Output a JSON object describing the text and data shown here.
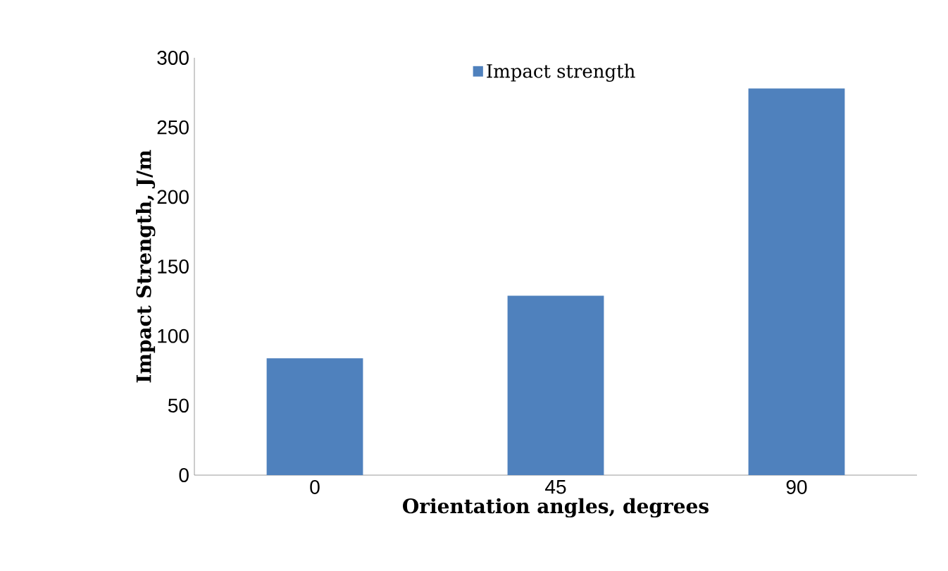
{
  "chart_data": {
    "type": "bar",
    "xlabel": "Orientation angles, degrees",
    "ylabel": "Impact  Strength, J/m",
    "categories": [
      "0",
      "45",
      "90"
    ],
    "series": [
      {
        "name": "Impact strength",
        "color": "#4f81bd",
        "values": [
          84,
          129,
          278
        ]
      }
    ],
    "ylim": [
      0,
      300
    ],
    "yticks": [
      0,
      50,
      100,
      150,
      200,
      250,
      300
    ],
    "grid": false,
    "legend": "top"
  }
}
